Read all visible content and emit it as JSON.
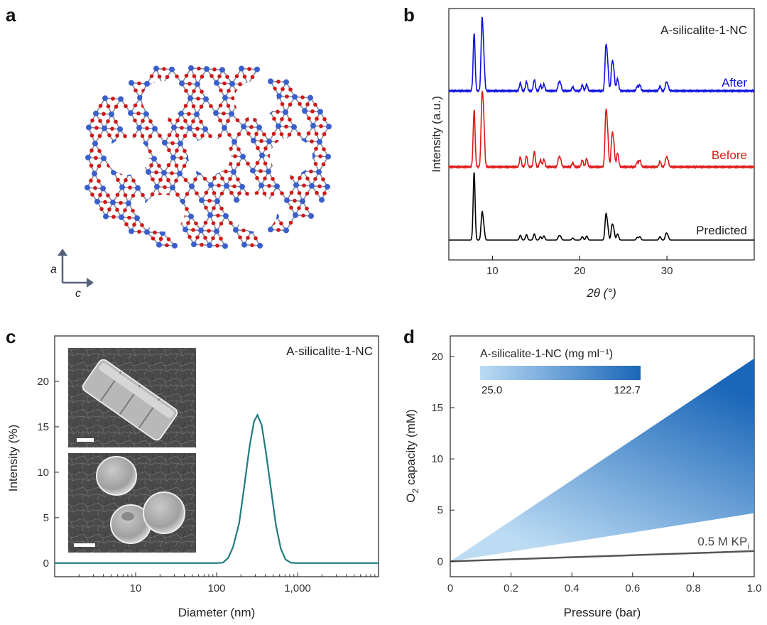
{
  "panel_letters": {
    "a": "a",
    "b": "b",
    "c": "c",
    "d": "d"
  },
  "colors": {
    "after": "#1010e0",
    "before": "#e01818",
    "predicted": "#000000",
    "dls_line": "#1f7a80",
    "gradient_light": "#bcdcf4",
    "gradient_dark": "#1a66b8",
    "kpi_line": "#555555",
    "si_atom": "#3a5fcd",
    "o_atom": "#d01818",
    "bond": "#8a8a9a"
  },
  "panel_a": {
    "axis_a_label": "a",
    "axis_c_label": "c",
    "atoms_icon": "framework-structure-illustration"
  },
  "chart_data": [
    {
      "panel": "b",
      "type": "line",
      "title": "A-silicalite-1-NC",
      "xlabel": "2θ (°)",
      "ylabel": "Intensity (a.u.)",
      "xlim": [
        5,
        40
      ],
      "xticks": [
        "10",
        "20",
        "30"
      ],
      "grid": false,
      "peaks_x": [
        7.9,
        8.8,
        9.0,
        13.2,
        13.9,
        14.8,
        15.5,
        15.9,
        17.6,
        17.8,
        19.2,
        20.3,
        20.8,
        23.0,
        23.2,
        23.7,
        23.9,
        24.3,
        24.4,
        26.6,
        26.9,
        29.2,
        29.9,
        30.1
      ],
      "series": [
        {
          "name": "After",
          "peak_heights": [
            0.87,
            1.0,
            0.45,
            0.12,
            0.14,
            0.17,
            0.09,
            0.1,
            0.11,
            0.1,
            0.06,
            0.09,
            0.1,
            0.62,
            0.36,
            0.38,
            0.28,
            0.12,
            0.08,
            0.07,
            0.09,
            0.07,
            0.11,
            0.08
          ]
        },
        {
          "name": "Before",
          "peak_heights": [
            0.82,
            0.95,
            0.6,
            0.14,
            0.16,
            0.22,
            0.1,
            0.11,
            0.12,
            0.1,
            0.06,
            0.1,
            0.12,
            0.74,
            0.42,
            0.42,
            0.3,
            0.13,
            0.09,
            0.07,
            0.1,
            0.08,
            0.12,
            0.09
          ]
        },
        {
          "name": "Predicted",
          "peak_heights": [
            1.0,
            0.38,
            0.18,
            0.07,
            0.08,
            0.09,
            0.05,
            0.06,
            0.05,
            0.05,
            0.03,
            0.05,
            0.06,
            0.35,
            0.18,
            0.2,
            0.14,
            0.06,
            0.04,
            0.04,
            0.05,
            0.05,
            0.09,
            0.06
          ]
        }
      ]
    },
    {
      "panel": "c",
      "type": "line",
      "title": "A-silicalite-1-NC",
      "xlabel": "Diameter (nm)",
      "ylabel": "Intensity (%)",
      "xscale": "log",
      "xlim": [
        1,
        10000
      ],
      "xticks": [
        "10",
        "100",
        "1,000"
      ],
      "ylim": [
        -1.5,
        25
      ],
      "yticks": [
        "0",
        "5",
        "10",
        "15",
        "20"
      ],
      "x": [
        1,
        100,
        120,
        140,
        160,
        190,
        220,
        255,
        290,
        320,
        360,
        410,
        470,
        540,
        620,
        710,
        820,
        950,
        10000
      ],
      "y": [
        0,
        0,
        0.05,
        0.6,
        1.8,
        4.4,
        8.5,
        12.8,
        15.6,
        16.3,
        15.2,
        12.0,
        8.1,
        4.2,
        1.6,
        0.4,
        0.05,
        0,
        0
      ],
      "inset_scale_bars": 2
    },
    {
      "panel": "d",
      "type": "area",
      "xlabel": "Pressure (bar)",
      "ylabel": "O2 capacity (mM)",
      "xlim": [
        0,
        1.0
      ],
      "ylim": [
        -1.5,
        22
      ],
      "xticks": [
        "0",
        "0.2",
        "0.4",
        "0.6",
        "0.8",
        "1.0"
      ],
      "yticks": [
        "0",
        "5",
        "10",
        "15",
        "20"
      ],
      "colorbar": {
        "title": "A-silicalite-1-NC (mg ml⁻¹)",
        "min_label": "25.0",
        "max_label": "122.7"
      },
      "series": [
        {
          "name": "A-silicalite-1-NC 25.0 mg ml⁻¹",
          "x": [
            0,
            1.0
          ],
          "y": [
            0,
            4.7
          ]
        },
        {
          "name": "A-silicalite-1-NC 122.7 mg ml⁻¹",
          "x": [
            0,
            1.0
          ],
          "y": [
            0,
            19.8
          ]
        },
        {
          "name": "0.5 M KPi",
          "x": [
            0,
            1.0
          ],
          "y": [
            0,
            1.0
          ]
        }
      ],
      "kpi_label_main": "0.5 M KP",
      "kpi_label_sub": "i"
    }
  ]
}
